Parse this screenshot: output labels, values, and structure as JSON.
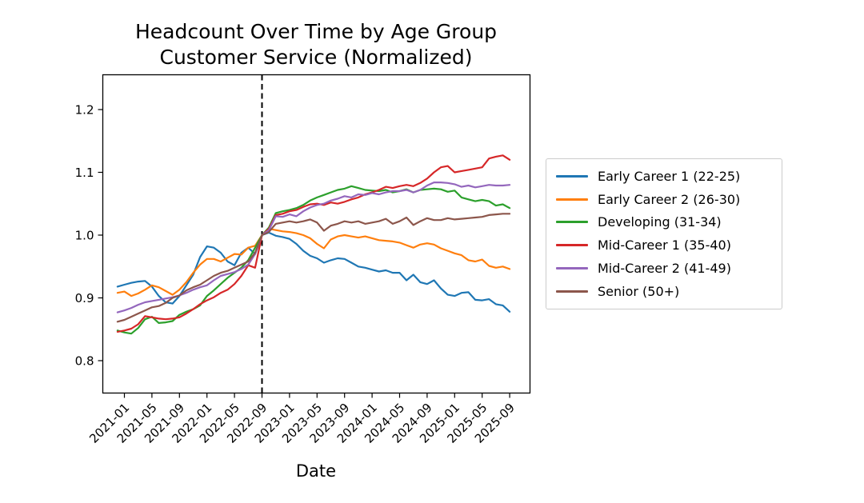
{
  "figure": {
    "background": "#ffffff",
    "axes_border_color": "#000000"
  },
  "title": {
    "line1": "Headcount Over Time by Age Group",
    "line2": "Customer Service (Normalized)"
  },
  "chart_data": {
    "type": "line",
    "title_line1": "Headcount Over Time by Age Group",
    "title_line2": "Customer Service (Normalized)",
    "xlabel": "Date",
    "ylabel": "",
    "grid": false,
    "legend_position": "right of axes",
    "ylim": [
      0.75,
      1.256
    ],
    "y_ticks": [
      0.8,
      0.9,
      1.0,
      1.1,
      1.2
    ],
    "y_tick_labels": [
      "0.8",
      "0.9",
      "1.0",
      "1.1",
      "1.2"
    ],
    "x_tick_labels": [
      "2021-01",
      "2021-05",
      "2021-09",
      "2022-01",
      "2022-05",
      "2022-09",
      "2023-01",
      "2023-05",
      "2023-09",
      "2024-01",
      "2024-05",
      "2024-09",
      "2025-01",
      "2025-05",
      "2025-09"
    ],
    "reference_line": {
      "x": "2022-09",
      "style": "dashed",
      "color": "#000000"
    },
    "x_months": [
      "2020-12",
      "2021-01",
      "2021-02",
      "2021-03",
      "2021-04",
      "2021-05",
      "2021-06",
      "2021-07",
      "2021-08",
      "2021-09",
      "2021-10",
      "2021-11",
      "2021-12",
      "2022-01",
      "2022-02",
      "2022-03",
      "2022-04",
      "2022-05",
      "2022-06",
      "2022-07",
      "2022-08",
      "2022-09",
      "2022-10",
      "2022-11",
      "2022-12",
      "2023-01",
      "2023-02",
      "2023-03",
      "2023-04",
      "2023-05",
      "2023-06",
      "2023-07",
      "2023-08",
      "2023-09",
      "2023-10",
      "2023-11",
      "2023-12",
      "2024-01",
      "2024-02",
      "2024-03",
      "2024-04",
      "2024-05",
      "2024-06",
      "2024-07",
      "2024-08",
      "2024-09",
      "2024-10",
      "2024-11",
      "2024-12",
      "2025-01",
      "2025-02",
      "2025-03",
      "2025-04",
      "2025-05",
      "2025-06",
      "2025-07",
      "2025-08",
      "2025-09"
    ],
    "series": [
      {
        "name": "Early Career 1 (22-25)",
        "color": "#1f77b4",
        "values": [
          0.918,
          0.921,
          0.924,
          0.926,
          0.927,
          0.918,
          0.903,
          0.893,
          0.891,
          0.903,
          0.92,
          0.937,
          0.965,
          0.982,
          0.98,
          0.972,
          0.958,
          0.952,
          0.972,
          0.98,
          0.97,
          1.0,
          1.004,
          0.999,
          0.997,
          0.994,
          0.986,
          0.975,
          0.967,
          0.963,
          0.956,
          0.96,
          0.963,
          0.962,
          0.956,
          0.95,
          0.948,
          0.945,
          0.942,
          0.944,
          0.94,
          0.94,
          0.928,
          0.937,
          0.925,
          0.922,
          0.928,
          0.915,
          0.905,
          0.903,
          0.908,
          0.909,
          0.897,
          0.896,
          0.898,
          0.89,
          0.888,
          0.878
        ]
      },
      {
        "name": "Early Career 2 (26-30)",
        "color": "#ff7f0e",
        "values": [
          0.908,
          0.91,
          0.903,
          0.907,
          0.913,
          0.92,
          0.917,
          0.911,
          0.905,
          0.913,
          0.925,
          0.94,
          0.953,
          0.962,
          0.962,
          0.958,
          0.964,
          0.97,
          0.969,
          0.98,
          0.983,
          1.0,
          1.01,
          1.008,
          1.006,
          1.005,
          1.003,
          1.0,
          0.995,
          0.986,
          0.979,
          0.993,
          0.998,
          1.0,
          0.998,
          0.996,
          0.998,
          0.995,
          0.992,
          0.991,
          0.99,
          0.988,
          0.984,
          0.98,
          0.985,
          0.987,
          0.985,
          0.979,
          0.975,
          0.971,
          0.968,
          0.96,
          0.958,
          0.961,
          0.951,
          0.948,
          0.95,
          0.946
        ]
      },
      {
        "name": "Developing (31-34)",
        "color": "#2ca02c",
        "values": [
          0.848,
          0.845,
          0.843,
          0.852,
          0.866,
          0.87,
          0.86,
          0.861,
          0.863,
          0.873,
          0.878,
          0.882,
          0.888,
          0.903,
          0.912,
          0.922,
          0.932,
          0.94,
          0.948,
          0.96,
          0.98,
          1.0,
          1.012,
          1.035,
          1.038,
          1.04,
          1.043,
          1.048,
          1.055,
          1.06,
          1.064,
          1.068,
          1.072,
          1.074,
          1.078,
          1.075,
          1.072,
          1.071,
          1.07,
          1.072,
          1.068,
          1.07,
          1.073,
          1.068,
          1.072,
          1.073,
          1.074,
          1.073,
          1.069,
          1.071,
          1.06,
          1.057,
          1.054,
          1.056,
          1.054,
          1.047,
          1.049,
          1.043
        ]
      },
      {
        "name": "Mid-Career 1 (35-40)",
        "color": "#d62728",
        "values": [
          0.846,
          0.848,
          0.851,
          0.858,
          0.871,
          0.869,
          0.867,
          0.866,
          0.867,
          0.869,
          0.875,
          0.882,
          0.89,
          0.896,
          0.901,
          0.908,
          0.913,
          0.922,
          0.935,
          0.952,
          0.948,
          1.0,
          1.01,
          1.032,
          1.034,
          1.038,
          1.04,
          1.045,
          1.049,
          1.05,
          1.048,
          1.052,
          1.05,
          1.053,
          1.057,
          1.06,
          1.065,
          1.068,
          1.072,
          1.077,
          1.075,
          1.078,
          1.08,
          1.078,
          1.083,
          1.09,
          1.1,
          1.108,
          1.11,
          1.1,
          1.102,
          1.104,
          1.106,
          1.108,
          1.122,
          1.125,
          1.127,
          1.12
        ]
      },
      {
        "name": "Mid-Career 2 (41-49)",
        "color": "#9467bd",
        "values": [
          0.877,
          0.88,
          0.884,
          0.889,
          0.893,
          0.895,
          0.897,
          0.899,
          0.901,
          0.904,
          0.908,
          0.913,
          0.917,
          0.92,
          0.928,
          0.935,
          0.938,
          0.941,
          0.946,
          0.953,
          0.97,
          1.0,
          1.008,
          1.03,
          1.029,
          1.033,
          1.03,
          1.038,
          1.044,
          1.048,
          1.05,
          1.055,
          1.058,
          1.062,
          1.06,
          1.065,
          1.064,
          1.067,
          1.065,
          1.068,
          1.07,
          1.07,
          1.072,
          1.068,
          1.072,
          1.079,
          1.084,
          1.084,
          1.083,
          1.081,
          1.077,
          1.079,
          1.076,
          1.078,
          1.08,
          1.079,
          1.079,
          1.08
        ]
      },
      {
        "name": "Senior (50+)",
        "color": "#8c564b",
        "values": [
          0.862,
          0.865,
          0.87,
          0.875,
          0.88,
          0.885,
          0.887,
          0.892,
          0.9,
          0.904,
          0.912,
          0.917,
          0.921,
          0.928,
          0.935,
          0.94,
          0.943,
          0.948,
          0.953,
          0.958,
          0.972,
          1.0,
          1.005,
          1.018,
          1.02,
          1.022,
          1.02,
          1.022,
          1.025,
          1.02,
          1.007,
          1.015,
          1.018,
          1.022,
          1.02,
          1.022,
          1.018,
          1.02,
          1.022,
          1.026,
          1.018,
          1.022,
          1.028,
          1.016,
          1.022,
          1.027,
          1.024,
          1.024,
          1.027,
          1.025,
          1.026,
          1.027,
          1.028,
          1.029,
          1.032,
          1.033,
          1.034,
          1.034
        ]
      }
    ]
  }
}
